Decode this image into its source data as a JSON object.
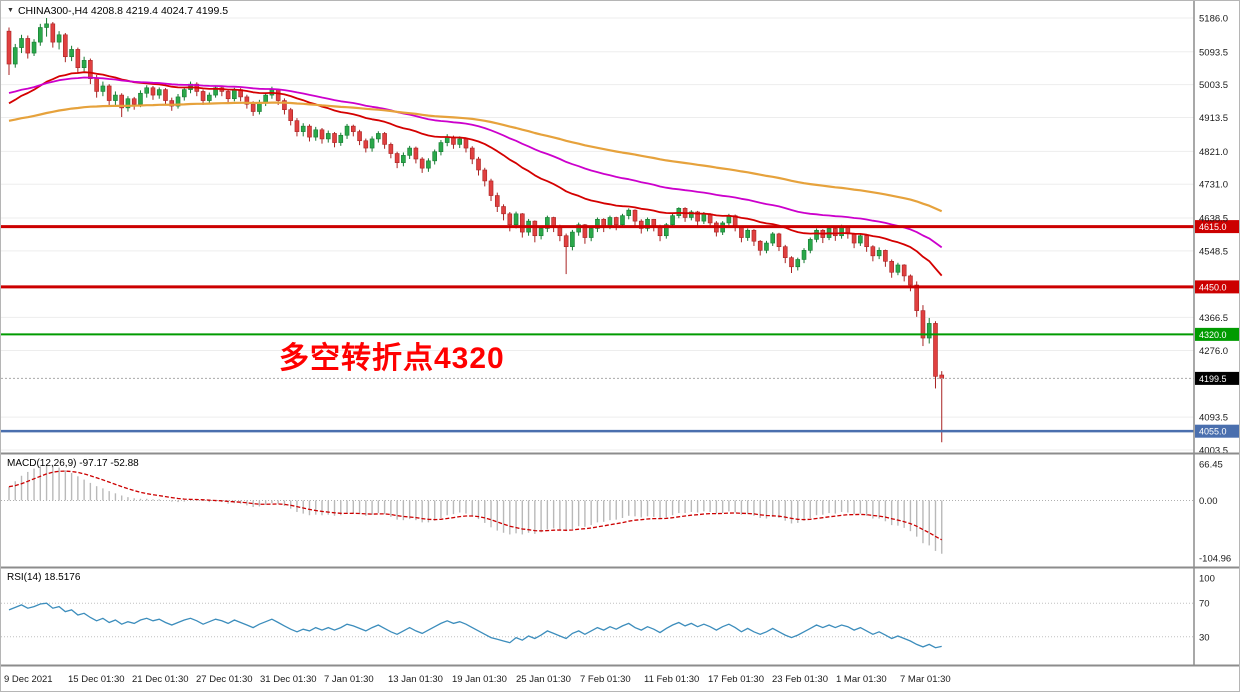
{
  "chart_data": {
    "type": "candlestick",
    "title": "CHINA300-,H4 4208.8 4219.4 4024.7 4199.5",
    "symbol": "CHINA300-",
    "timeframe": "H4",
    "ohlc": {
      "open": 4208.8,
      "high": 4219.4,
      "low": 4024.7,
      "close": 4199.5
    },
    "annotation": {
      "text": "多空转折点4320",
      "color": "#ff0000"
    },
    "current_price": {
      "value": 4199.5,
      "label": "4199.5"
    },
    "price_axis": {
      "ticks": [
        5186.0,
        5093.5,
        5003.5,
        4913.5,
        4821.0,
        4731.0,
        4638.5,
        4548.5,
        4366.5,
        4276.0,
        4093.5,
        4003.5
      ]
    },
    "levels": [
      {
        "price": 4615.0,
        "label": "4615.0",
        "color_key": "level_red",
        "width": 3
      },
      {
        "price": 4450.0,
        "label": "4450.0",
        "color_key": "level_red",
        "width": 3
      },
      {
        "price": 4320.0,
        "label": "4320.0",
        "color_key": "level_green",
        "width": 2
      },
      {
        "price": 4055.0,
        "label": "4055.0",
        "color_key": "level_blue",
        "width": 2.5
      }
    ],
    "moving_averages": [
      {
        "name": "ma-fast-red",
        "color_key": "ma_fast",
        "period": 30,
        "seed": 4945,
        "width": 1.8
      },
      {
        "name": "ma-mid-magenta",
        "color_key": "ma_mid",
        "period": 60,
        "seed": 4978,
        "width": 1.8
      },
      {
        "name": "ma-slow-orange",
        "color_key": "ma_slow",
        "period": 120,
        "seed": 4902,
        "width": 2.2
      }
    ],
    "colors": {
      "background": "#ffffff",
      "bull": "#2aa84a",
      "bull_border": "#157a31",
      "bear": "#e04040",
      "bear_border": "#a82222",
      "grid": "#ededed",
      "separator": "#8c8c8c",
      "axis_text": "#1a1a1a",
      "ma_fast": "#d40000",
      "ma_mid": "#cc00cc",
      "ma_slow": "#e6a23c",
      "macd_histogram": "#b9b9b9",
      "macd_signal": "#cc0000",
      "rsi_line": "#3c8dbc",
      "rsi_levels": "#c0c0c0",
      "level_red": "#cc0000",
      "level_green": "#009b00",
      "level_blue": "#4a6fae",
      "current_price_bg": "#000000",
      "current_price_line": "#aaaaaa"
    },
    "candles": [
      [
        5150,
        5160,
        5030,
        5060
      ],
      [
        5060,
        5115,
        5050,
        5105
      ],
      [
        5105,
        5140,
        5090,
        5130
      ],
      [
        5130,
        5138,
        5075,
        5090
      ],
      [
        5090,
        5128,
        5082,
        5120
      ],
      [
        5120,
        5170,
        5110,
        5160
      ],
      [
        5160,
        5186,
        5135,
        5170
      ],
      [
        5170,
        5175,
        5105,
        5120
      ],
      [
        5120,
        5150,
        5100,
        5140
      ],
      [
        5140,
        5145,
        5065,
        5080
      ],
      [
        5080,
        5110,
        5068,
        5100
      ],
      [
        5100,
        5105,
        5035,
        5050
      ],
      [
        5050,
        5080,
        5040,
        5070
      ],
      [
        5070,
        5075,
        5005,
        5020
      ],
      [
        5020,
        5030,
        4968,
        4985
      ],
      [
        4985,
        5012,
        4972,
        5000
      ],
      [
        5000,
        5005,
        4945,
        4960
      ],
      [
        4960,
        4985,
        4948,
        4975
      ],
      [
        4975,
        4980,
        4915,
        4940
      ],
      [
        4940,
        4972,
        4930,
        4965
      ],
      [
        4965,
        4970,
        4935,
        4950
      ],
      [
        4950,
        4988,
        4942,
        4980
      ],
      [
        4980,
        5002,
        4968,
        4995
      ],
      [
        4995,
        5000,
        4962,
        4975
      ],
      [
        4975,
        4996,
        4965,
        4990
      ],
      [
        4990,
        4994,
        4950,
        4960
      ],
      [
        4960,
        4968,
        4932,
        4945
      ],
      [
        4945,
        4978,
        4938,
        4970
      ],
      [
        4970,
        4995,
        4960,
        4990
      ],
      [
        4990,
        5012,
        4980,
        5005
      ],
      [
        5005,
        5010,
        4972,
        4985
      ],
      [
        4985,
        4990,
        4948,
        4960
      ],
      [
        4960,
        4982,
        4950,
        4975
      ],
      [
        4975,
        5000,
        4968,
        4995
      ],
      [
        4995,
        4998,
        4972,
        4985
      ],
      [
        4985,
        4990,
        4952,
        4965
      ],
      [
        4965,
        4995,
        4958,
        4990
      ],
      [
        4990,
        4994,
        4958,
        4970
      ],
      [
        4970,
        4976,
        4938,
        4950
      ],
      [
        4950,
        4958,
        4918,
        4930
      ],
      [
        4930,
        4962,
        4922,
        4955
      ],
      [
        4955,
        4980,
        4945,
        4975
      ],
      [
        4975,
        4998,
        4965,
        4990
      ],
      [
        4990,
        4992,
        4948,
        4960
      ],
      [
        4960,
        4966,
        4922,
        4935
      ],
      [
        4935,
        4940,
        4892,
        4905
      ],
      [
        4905,
        4912,
        4862,
        4875
      ],
      [
        4875,
        4898,
        4862,
        4890
      ],
      [
        4890,
        4895,
        4848,
        4860
      ],
      [
        4860,
        4888,
        4850,
        4880
      ],
      [
        4880,
        4885,
        4842,
        4855
      ],
      [
        4855,
        4878,
        4845,
        4870
      ],
      [
        4870,
        4874,
        4832,
        4845
      ],
      [
        4845,
        4872,
        4836,
        4865
      ],
      [
        4865,
        4896,
        4855,
        4890
      ],
      [
        4890,
        4894,
        4862,
        4875
      ],
      [
        4875,
        4880,
        4838,
        4850
      ],
      [
        4850,
        4856,
        4818,
        4830
      ],
      [
        4830,
        4862,
        4820,
        4855
      ],
      [
        4855,
        4876,
        4845,
        4870
      ],
      [
        4870,
        4874,
        4828,
        4840
      ],
      [
        4840,
        4845,
        4802,
        4815
      ],
      [
        4815,
        4820,
        4775,
        4790
      ],
      [
        4790,
        4818,
        4780,
        4810
      ],
      [
        4810,
        4836,
        4800,
        4830
      ],
      [
        4830,
        4834,
        4788,
        4800
      ],
      [
        4800,
        4805,
        4762,
        4775
      ],
      [
        4775,
        4802,
        4765,
        4795
      ],
      [
        4795,
        4826,
        4785,
        4820
      ],
      [
        4820,
        4852,
        4810,
        4845
      ],
      [
        4845,
        4868,
        4835,
        4860
      ],
      [
        4860,
        4864,
        4828,
        4840
      ],
      [
        4840,
        4862,
        4830,
        4855
      ],
      [
        4855,
        4858,
        4818,
        4830
      ],
      [
        4830,
        4835,
        4786,
        4800
      ],
      [
        4800,
        4806,
        4755,
        4770
      ],
      [
        4770,
        4776,
        4725,
        4740
      ],
      [
        4740,
        4746,
        4685,
        4700
      ],
      [
        4700,
        4708,
        4655,
        4670
      ],
      [
        4670,
        4676,
        4632,
        4650
      ],
      [
        4650,
        4655,
        4602,
        4620
      ],
      [
        4620,
        4656,
        4610,
        4650
      ],
      [
        4650,
        4652,
        4585,
        4600
      ],
      [
        4600,
        4636,
        4590,
        4630
      ],
      [
        4630,
        4632,
        4572,
        4590
      ],
      [
        4590,
        4616,
        4580,
        4610
      ],
      [
        4610,
        4645,
        4600,
        4640
      ],
      [
        4640,
        4642,
        4600,
        4615
      ],
      [
        4615,
        4620,
        4575,
        4590
      ],
      [
        4590,
        4596,
        4485,
        4560
      ],
      [
        4560,
        4606,
        4550,
        4600
      ],
      [
        4600,
        4626,
        4590,
        4620
      ],
      [
        4620,
        4622,
        4568,
        4585
      ],
      [
        4585,
        4615,
        4575,
        4610
      ],
      [
        4610,
        4640,
        4600,
        4635
      ],
      [
        4635,
        4638,
        4600,
        4615
      ],
      [
        4615,
        4645,
        4608,
        4640
      ],
      [
        4640,
        4642,
        4605,
        4620
      ],
      [
        4620,
        4650,
        4612,
        4645
      ],
      [
        4645,
        4665,
        4635,
        4660
      ],
      [
        4660,
        4662,
        4618,
        4630
      ],
      [
        4630,
        4635,
        4596,
        4610
      ],
      [
        4610,
        4640,
        4602,
        4635
      ],
      [
        4635,
        4636,
        4602,
        4615
      ],
      [
        4615,
        4620,
        4575,
        4590
      ],
      [
        4590,
        4625,
        4582,
        4620
      ],
      [
        4620,
        4650,
        4612,
        4645
      ],
      [
        4645,
        4668,
        4638,
        4665
      ],
      [
        4665,
        4668,
        4628,
        4640
      ],
      [
        4640,
        4660,
        4632,
        4655
      ],
      [
        4655,
        4658,
        4618,
        4630
      ],
      [
        4630,
        4655,
        4622,
        4650
      ],
      [
        4650,
        4652,
        4612,
        4625
      ],
      [
        4625,
        4630,
        4588,
        4600
      ],
      [
        4600,
        4630,
        4592,
        4625
      ],
      [
        4625,
        4650,
        4618,
        4645
      ],
      [
        4645,
        4648,
        4602,
        4615
      ],
      [
        4615,
        4618,
        4572,
        4585
      ],
      [
        4585,
        4610,
        4576,
        4605
      ],
      [
        4605,
        4608,
        4562,
        4575
      ],
      [
        4575,
        4578,
        4536,
        4550
      ],
      [
        4550,
        4576,
        4542,
        4570
      ],
      [
        4570,
        4600,
        4562,
        4595
      ],
      [
        4595,
        4598,
        4548,
        4560
      ],
      [
        4560,
        4565,
        4515,
        4530
      ],
      [
        4530,
        4534,
        4488,
        4505
      ],
      [
        4505,
        4530,
        4495,
        4525
      ],
      [
        4525,
        4556,
        4515,
        4550
      ],
      [
        4550,
        4585,
        4542,
        4580
      ],
      [
        4580,
        4610,
        4572,
        4605
      ],
      [
        4605,
        4608,
        4570,
        4585
      ],
      [
        4585,
        4615,
        4578,
        4610
      ],
      [
        4610,
        4612,
        4576,
        4590
      ],
      [
        4590,
        4620,
        4582,
        4615
      ],
      [
        4615,
        4618,
        4582,
        4595
      ],
      [
        4595,
        4598,
        4556,
        4570
      ],
      [
        4570,
        4596,
        4562,
        4590
      ],
      [
        4590,
        4592,
        4546,
        4560
      ],
      [
        4560,
        4564,
        4520,
        4535
      ],
      [
        4535,
        4558,
        4526,
        4550
      ],
      [
        4550,
        4552,
        4505,
        4520
      ],
      [
        4520,
        4525,
        4475,
        4490
      ],
      [
        4490,
        4516,
        4482,
        4510
      ],
      [
        4510,
        4512,
        4465,
        4480
      ],
      [
        4480,
        4484,
        4438,
        4455
      ],
      [
        4455,
        4465,
        4368,
        4385
      ],
      [
        4385,
        4400,
        4288,
        4310
      ],
      [
        4310,
        4365,
        4295,
        4350
      ],
      [
        4350,
        4356,
        4172,
        4205
      ],
      [
        4208.8,
        4219.4,
        4024.7,
        4199.5
      ]
    ],
    "indicators": {
      "macd": {
        "label": "MACD(12,26,9)",
        "value": -97.17,
        "signal_value": -52.88,
        "display": "MACD(12,26,9) -97.17 -52.88",
        "axis_ticks": [
          66.45,
          0.0,
          -104.96
        ],
        "signal_period": 9,
        "histogram": [
          25,
          35,
          45,
          52,
          58,
          62,
          66,
          64,
          60,
          55,
          50,
          44,
          38,
          32,
          26,
          22,
          17,
          13,
          9,
          6,
          4,
          3,
          3,
          2,
          2,
          0,
          -2,
          -3,
          -2,
          0,
          1,
          -1,
          -3,
          -2,
          -3,
          -6,
          -5,
          -6,
          -9,
          -12,
          -11,
          -8,
          -5,
          -6,
          -10,
          -15,
          -21,
          -24,
          -27,
          -26,
          -27,
          -26,
          -28,
          -27,
          -24,
          -23,
          -25,
          -28,
          -26,
          -23,
          -25,
          -30,
          -35,
          -36,
          -34,
          -36,
          -40,
          -40,
          -37,
          -32,
          -27,
          -25,
          -22,
          -24,
          -28,
          -34,
          -41,
          -49,
          -55,
          -59,
          -62,
          -60,
          -62,
          -59,
          -61,
          -58,
          -53,
          -51,
          -53,
          -56,
          -52,
          -47,
          -48,
          -45,
          -40,
          -39,
          -36,
          -35,
          -32,
          -28,
          -29,
          -31,
          -29,
          -30,
          -33,
          -31,
          -27,
          -23,
          -23,
          -21,
          -22,
          -20,
          -21,
          -24,
          -23,
          -20,
          -22,
          -26,
          -25,
          -28,
          -32,
          -33,
          -30,
          -32,
          -37,
          -42,
          -41,
          -37,
          -32,
          -27,
          -26,
          -23,
          -24,
          -21,
          -22,
          -25,
          -24,
          -28,
          -33,
          -33,
          -38,
          -45,
          -46,
          -50,
          -56,
          -66,
          -78,
          -82,
          -92,
          -97.17
        ]
      },
      "rsi": {
        "label": "RSI(14)",
        "value": 18.5176,
        "display": "RSI(14) 18.5176",
        "axis_ticks": [
          100,
          70,
          30
        ],
        "levels": [
          70,
          30
        ],
        "values": [
          62,
          65,
          68,
          64,
          66,
          69,
          70,
          64,
          66,
          60,
          62,
          56,
          58,
          53,
          49,
          52,
          47,
          50,
          45,
          48,
          46,
          50,
          52,
          49,
          51,
          47,
          44,
          47,
          50,
          52,
          49,
          45,
          48,
          51,
          49,
          46,
          50,
          47,
          44,
          41,
          45,
          48,
          51,
          47,
          43,
          39,
          36,
          39,
          37,
          41,
          38,
          41,
          38,
          41,
          45,
          43,
          40,
          37,
          41,
          44,
          40,
          36,
          33,
          37,
          41,
          37,
          34,
          38,
          42,
          46,
          49,
          46,
          48,
          45,
          41,
          37,
          33,
          29,
          27,
          25,
          23,
          29,
          26,
          31,
          28,
          32,
          37,
          34,
          31,
          28,
          34,
          37,
          33,
          37,
          41,
          38,
          42,
          39,
          43,
          46,
          41,
          38,
          42,
          39,
          35,
          40,
          44,
          47,
          43,
          46,
          42,
          45,
          42,
          38,
          42,
          45,
          41,
          36,
          40,
          36,
          33,
          36,
          40,
          36,
          32,
          29,
          32,
          36,
          40,
          44,
          41,
          44,
          41,
          44,
          42,
          38,
          41,
          37,
          33,
          36,
          32,
          28,
          31,
          28,
          25,
          21,
          18,
          21,
          17,
          18.5176
        ]
      }
    },
    "time_axis": {
      "labels": [
        "9 Dec 2021",
        "15 Dec 01:30",
        "21 Dec 01:30",
        "27 Dec 01:30",
        "31 Dec 01:30",
        "7 Jan 01:30",
        "13 Jan 01:30",
        "19 Jan 01:30",
        "25 Jan 01:30",
        "7 Feb 01:30",
        "11 Feb 01:30",
        "17 Feb 01:30",
        "23 Feb 01:30",
        "1 Mar 01:30",
        "7 Mar 01:30"
      ]
    }
  }
}
